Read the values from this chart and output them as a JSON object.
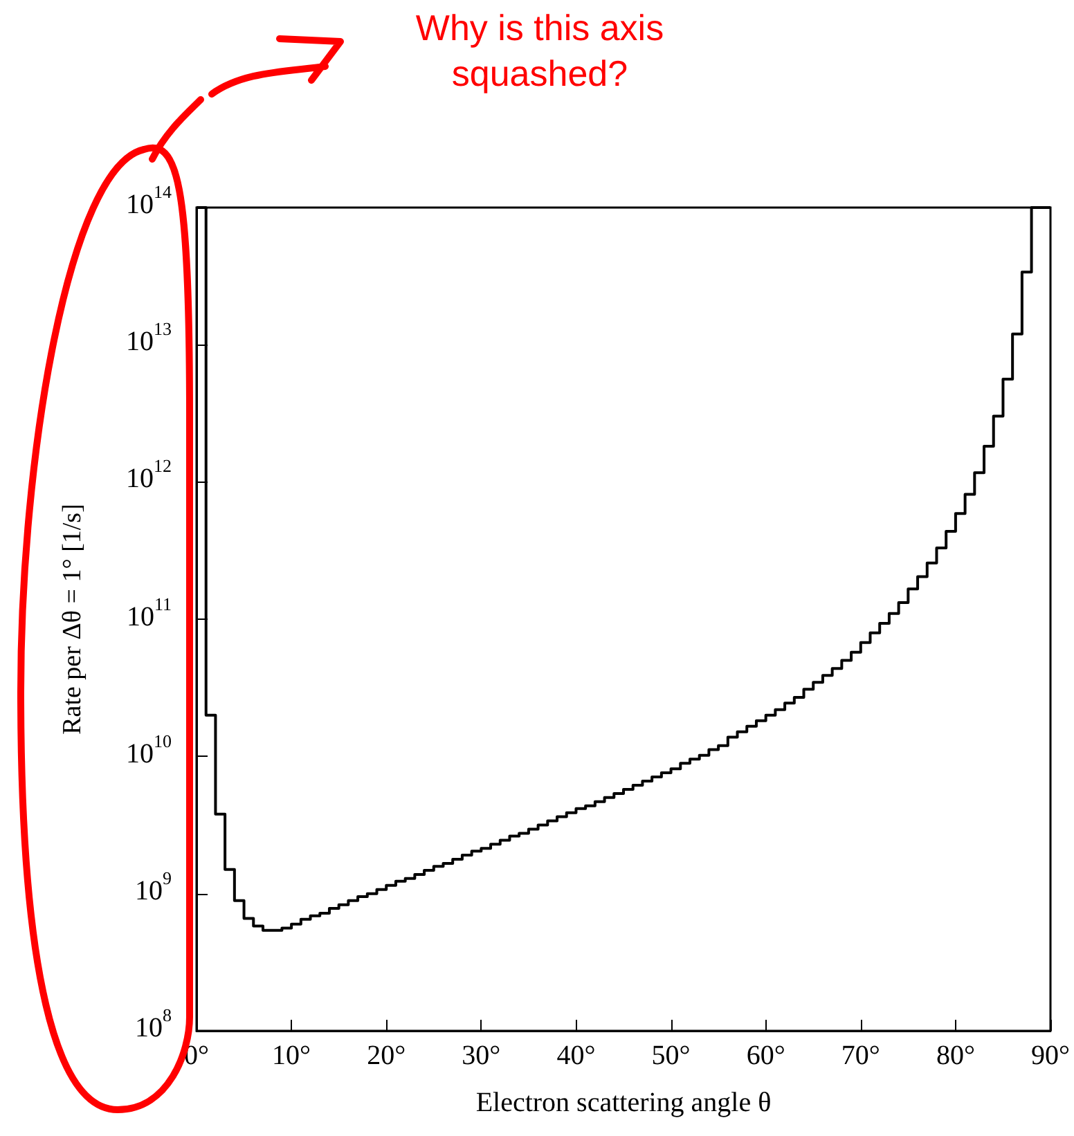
{
  "chart_data": {
    "type": "histogram",
    "xlabel": "Electron scattering angle θ",
    "ylabel": "Rate per Δθ = 1° [1/s]",
    "annotations": [
      "Why is this axis squashed?"
    ],
    "color": "#000000",
    "log": true,
    "bins": [
      0,
      1,
      2,
      3,
      4,
      5,
      6,
      7,
      8,
      9,
      10,
      11,
      12,
      13,
      14,
      15,
      16,
      17,
      18,
      19,
      20,
      21,
      22,
      23,
      24,
      25,
      26,
      27,
      28,
      29,
      30,
      31,
      32,
      33,
      34,
      35,
      36,
      37,
      38,
      39,
      40,
      41,
      42,
      43,
      44,
      45,
      46,
      47,
      48,
      49,
      50,
      51,
      52,
      53,
      54,
      55,
      56,
      57,
      58,
      59,
      60,
      61,
      62,
      63,
      64,
      65,
      66,
      67,
      68,
      69,
      70,
      71,
      72,
      73,
      74,
      75,
      76,
      77,
      78,
      79,
      80,
      81,
      82,
      83,
      84,
      85,
      86,
      87,
      88,
      89,
      90
    ],
    "values": [
      100000000000000.0,
      20000000000.0,
      3800000000.0,
      1500000000.0,
      890000000.0,
      660000000.0,
      580000000.0,
      540000000.0,
      540000000.0,
      560000000.0,
      600000000.0,
      650000000.0,
      690000000.0,
      720000000.0,
      780000000.0,
      830000000.0,
      890000000.0,
      950000000.0,
      1000000000.0,
      1070000000.0,
      1150000000.0,
      1230000000.0,
      1290000000.0,
      1380000000.0,
      1480000000.0,
      1580000000.0,
      1660000000.0,
      1780000000.0,
      1910000000.0,
      2040000000.0,
      2140000000.0,
      2290000000.0,
      2450000000.0,
      2630000000.0,
      2750000000.0,
      2950000000.0,
      3160000000.0,
      3390000000.0,
      3630000000.0,
      3890000000.0,
      4170000000.0,
      4370000000.0,
      4680000000.0,
      5010000000.0,
      5370000000.0,
      5750000000.0,
      6170000000.0,
      6610000000.0,
      7080000000.0,
      7590000000.0,
      8130000000.0,
      8910000000.0,
      9550000000.0,
      10200000000.0,
      11200000000.0,
      12000000000.0,
      13800000000.0,
      15100000000.0,
      16600000000.0,
      18200000000.0,
      20000000000.0,
      21900000000.0,
      24500000000.0,
      26900000000.0,
      30900000000.0,
      34700000000.0,
      38900000000.0,
      43700000000.0,
      50100000000.0,
      57500000000.0,
      67600000000.0,
      79400000000.0,
      93300000000.0,
      110000000000.0,
      132000000000.0,
      166000000000.0,
      204000000000.0,
      257000000000.0,
      331000000000.0,
      437000000000.0,
      589000000000.0,
      813000000000.0,
      1170000000000.0,
      1820000000000.0,
      3020000000000.0,
      5620000000000.0,
      12000000000000.0,
      33900000000000.0,
      100000000000000.0,
      100000000000000.0
    ],
    "xlim": [
      0,
      90
    ],
    "xticks": [
      {
        "value": 0,
        "label": "0°"
      },
      {
        "value": 10,
        "label": "10°"
      },
      {
        "value": 20,
        "label": "20°"
      },
      {
        "value": 30,
        "label": "30°"
      },
      {
        "value": 40,
        "label": "40°"
      },
      {
        "value": 50,
        "label": "50°"
      },
      {
        "value": 60,
        "label": "60°"
      },
      {
        "value": 70,
        "label": "70°"
      },
      {
        "value": 80,
        "label": "80°"
      },
      {
        "value": 90,
        "label": "90°"
      }
    ],
    "ylim": [
      100000000.0,
      100000000000000.0
    ],
    "yticks": [
      {
        "value": 100000000.0,
        "label": "10$^{8}$"
      },
      {
        "value": 1000000000.0,
        "label": "10$^{9}$"
      },
      {
        "value": 10000000000.0,
        "label": "10$^{10}$"
      },
      {
        "value": 100000000000.0,
        "label": "10$^{11}$"
      },
      {
        "value": 1000000000000.0,
        "label": "10$^{12}$"
      },
      {
        "value": 10000000000000.0,
        "label": "10$^{13}$"
      },
      {
        "value": 100000000000000.0,
        "label": "10$^{14}$"
      }
    ]
  }
}
